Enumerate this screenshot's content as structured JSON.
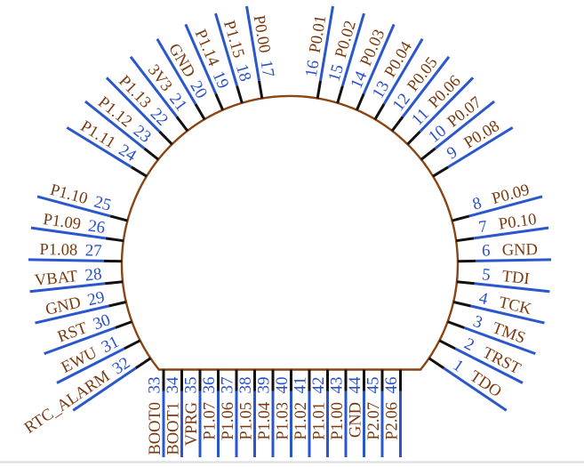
{
  "diagram": {
    "type": "ic-pinout",
    "description": "46-pin circular IC pinout diagram with flat bottom edge",
    "colors": {
      "wire": "#2b57cc",
      "stub": "#111111",
      "number": "#2a50c8",
      "name": "#7a3a10",
      "outline": "#8a4513",
      "body_fill": "#ffffff",
      "background": "#ffffff",
      "bottom_rule": "#dbdbe0"
    },
    "radial_pins": [
      {
        "num": "1",
        "name": "TDO"
      },
      {
        "num": "2",
        "name": "TRST"
      },
      {
        "num": "3",
        "name": "TMS"
      },
      {
        "num": "4",
        "name": "TCK"
      },
      {
        "num": "5",
        "name": "TDI"
      },
      {
        "num": "6",
        "name": "GND"
      },
      {
        "num": "7",
        "name": "P0.10"
      },
      {
        "num": "8",
        "name": "P0.09"
      },
      {
        "num": "9",
        "name": "P0.08"
      },
      {
        "num": "10",
        "name": "P0.07"
      },
      {
        "num": "11",
        "name": "P0.06"
      },
      {
        "num": "12",
        "name": "P0.05"
      },
      {
        "num": "13",
        "name": "P0.04"
      },
      {
        "num": "14",
        "name": "P0.03"
      },
      {
        "num": "15",
        "name": "P0.02"
      },
      {
        "num": "16",
        "name": "P0.01"
      },
      {
        "num": "17",
        "name": "P0.00"
      },
      {
        "num": "18",
        "name": "P1.15"
      },
      {
        "num": "19",
        "name": "P1.14"
      },
      {
        "num": "20",
        "name": "GND"
      },
      {
        "num": "21",
        "name": "3V3"
      },
      {
        "num": "22",
        "name": "P1.13"
      },
      {
        "num": "23",
        "name": "P1.12"
      },
      {
        "num": "24",
        "name": "P1.11"
      },
      {
        "num": "25",
        "name": "P1.10"
      },
      {
        "num": "26",
        "name": "P1.09"
      },
      {
        "num": "27",
        "name": "P1.08"
      },
      {
        "num": "28",
        "name": "VBAT"
      },
      {
        "num": "29",
        "name": "GND"
      },
      {
        "num": "30",
        "name": "RST"
      },
      {
        "num": "31",
        "name": "EWU"
      },
      {
        "num": "32",
        "name": "RTC_ALARM"
      }
    ],
    "bottom_pins": [
      {
        "num": "33",
        "name": "BOOT0"
      },
      {
        "num": "34",
        "name": "BOOT1"
      },
      {
        "num": "35",
        "name": "VPRG"
      },
      {
        "num": "36",
        "name": "P1.07"
      },
      {
        "num": "37",
        "name": "P1.06"
      },
      {
        "num": "38",
        "name": "P1.05"
      },
      {
        "num": "39",
        "name": "P1.04"
      },
      {
        "num": "40",
        "name": "P1.03"
      },
      {
        "num": "41",
        "name": "P1.02"
      },
      {
        "num": "42",
        "name": "P1.01"
      },
      {
        "num": "43",
        "name": "P1.00"
      },
      {
        "num": "44",
        "name": "GND"
      },
      {
        "num": "45",
        "name": "P2.07"
      },
      {
        "num": "46",
        "name": "P2.06"
      }
    ]
  }
}
